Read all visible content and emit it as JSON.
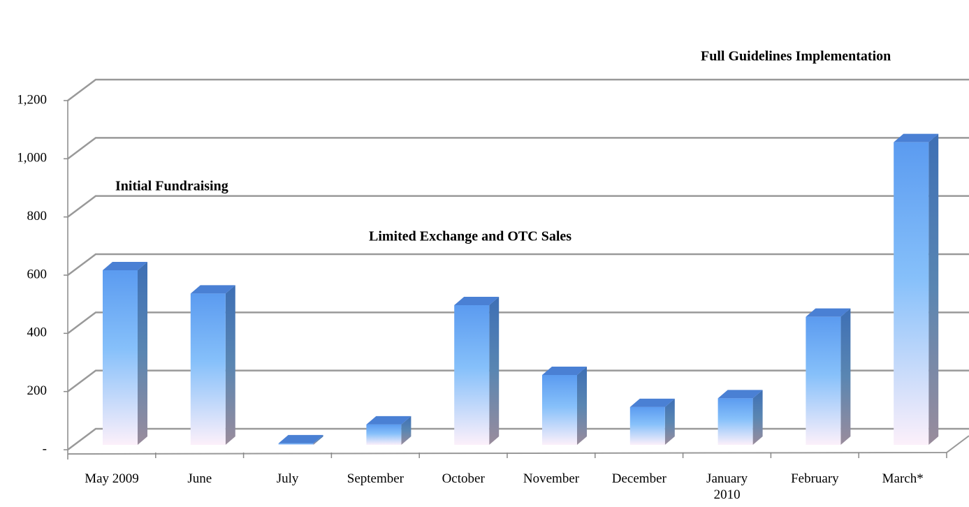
{
  "chart_data": {
    "type": "bar3d",
    "categories": [
      "May 2009",
      "June",
      "July",
      "September",
      "October",
      "November",
      "December",
      "January\n2010",
      "February",
      "March*"
    ],
    "values": [
      600,
      520,
      5,
      70,
      480,
      240,
      130,
      160,
      440,
      1040
    ],
    "ylim": [
      0,
      1200
    ],
    "yticks": [
      {
        "value": 0,
        "label": "-"
      },
      200,
      400,
      600,
      800,
      {
        "value": 1000,
        "label": "1,000"
      },
      {
        "value": 1200,
        "label": "1,200"
      }
    ],
    "grid": true,
    "color": "#5b9bf0",
    "annotations": [
      "Initial Fundraising",
      "Limited Exchange and OTC Sales",
      "Full Guidelines Implementation"
    ]
  }
}
